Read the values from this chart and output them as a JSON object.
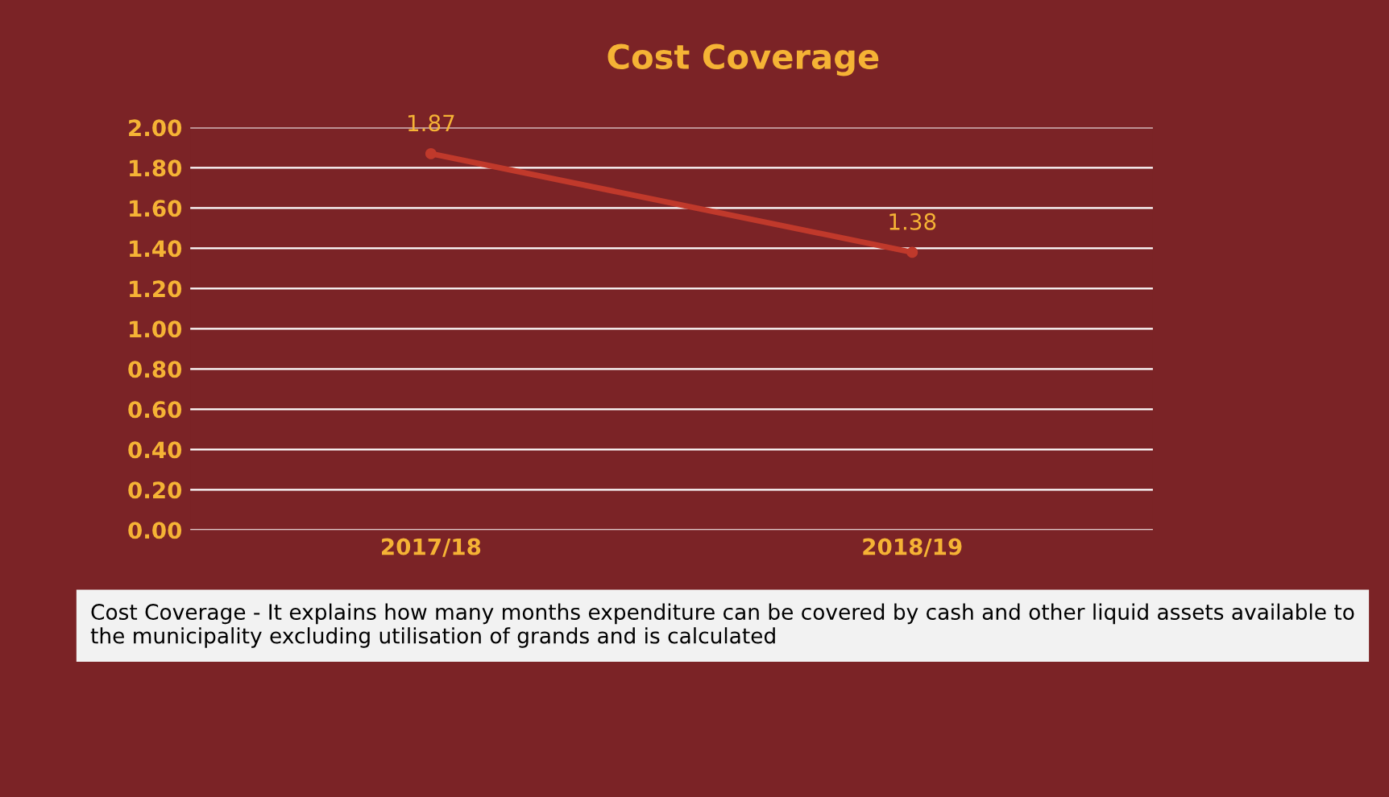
{
  "chart_data": {
    "type": "line",
    "title": "Cost Coverage",
    "categories": [
      "2017/18",
      "2018/19"
    ],
    "series": [
      {
        "color": "#c0392b",
        "values": [
          1.87,
          1.38
        ]
      }
    ],
    "ylim": [
      0,
      2
    ],
    "yticks": [
      {
        "value": 0,
        "label": "0.00"
      },
      {
        "value": 0.2,
        "label": "0.20"
      },
      {
        "value": 0.4,
        "label": "0.40"
      },
      {
        "value": 0.6,
        "label": "0.60"
      },
      {
        "value": 0.8,
        "label": "0.80"
      },
      {
        "value": 1,
        "label": "1.00"
      },
      {
        "value": 1.2,
        "label": "1.20"
      },
      {
        "value": 1.4,
        "label": "1.40"
      },
      {
        "value": 1.6,
        "label": "1.60"
      },
      {
        "value": 1.8,
        "label": "1.80"
      },
      {
        "value": 2,
        "label": "2.00"
      }
    ],
    "grid": "y",
    "marker": "circle",
    "line_style": "solid",
    "data_labels": true,
    "legend": false,
    "annotations": [
      "Cost Coverage - It explains how many months expenditure can be covered by cash and other liquid assets available to the municipality excluding utilisation of grands and is calculated"
    ]
  }
}
